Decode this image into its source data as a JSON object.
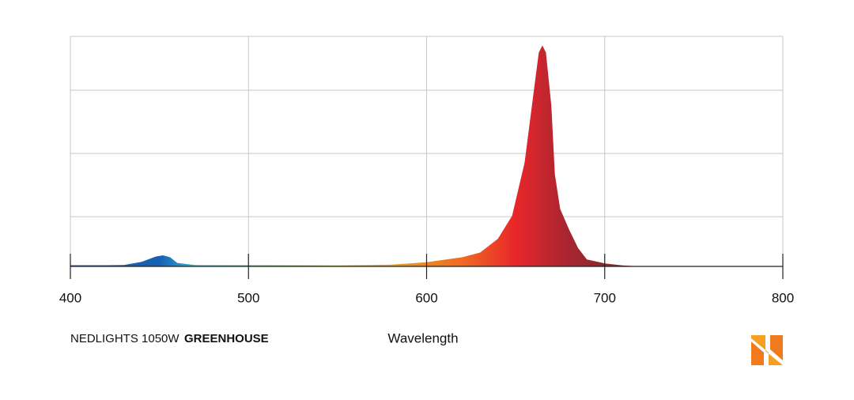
{
  "chart_data": {
    "type": "area",
    "x": [
      400,
      420,
      430,
      440,
      448,
      452,
      456,
      460,
      470,
      500,
      550,
      580,
      600,
      620,
      630,
      640,
      648,
      655,
      660,
      663,
      665,
      667,
      670,
      672,
      675,
      680,
      685,
      690,
      700,
      710,
      720,
      800
    ],
    "values": [
      0.5,
      0.5,
      0.6,
      2,
      4.3,
      4.8,
      4,
      1.5,
      0.6,
      0.5,
      0.4,
      0.8,
      1.8,
      4,
      6,
      12,
      22,
      45,
      75,
      93,
      96,
      93,
      70,
      40,
      25,
      16,
      8,
      3,
      1.3,
      0.4,
      0,
      0
    ],
    "xlim": [
      400,
      800
    ],
    "xticks": [
      400,
      500,
      600,
      700,
      800
    ],
    "ylim": [
      0,
      100
    ],
    "yticks": [
      21.6,
      49.1,
      76.6,
      100
    ],
    "grid": true,
    "xlabel": "Wavelength",
    "caption": "NEDLIGHTS 1050W",
    "caption_bold": "GREENHOUSE"
  }
}
